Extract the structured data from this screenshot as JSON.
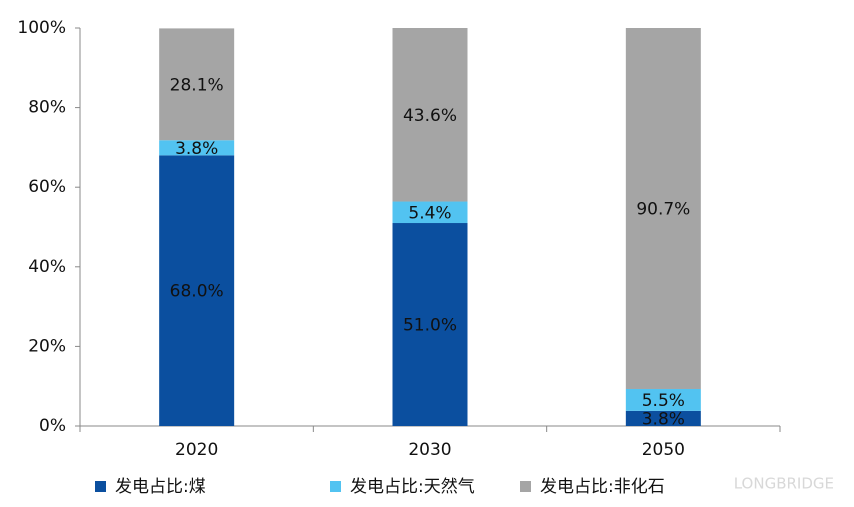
{
  "chart_data": {
    "type": "stacked_bar",
    "categories": [
      "2020",
      "2030",
      "2050"
    ],
    "series": [
      {
        "name": "发电占比:煤",
        "color": "#0b4f9f",
        "values": [
          68.0,
          51.0,
          3.8
        ],
        "value_labels": [
          "68.0%",
          "51.0%",
          "3.8%"
        ],
        "label_color": "#ffffff"
      },
      {
        "name": "发电占比:天然气",
        "color": "#52c3f1",
        "values": [
          3.8,
          5.4,
          5.5
        ],
        "value_labels": [
          "3.8%",
          "5.4%",
          "5.5%"
        ],
        "label_color": "#111111"
      },
      {
        "name": "发电占比:非化石",
        "color": "#a5a5a5",
        "values": [
          28.1,
          43.6,
          90.7
        ],
        "value_labels": [
          "28.1%",
          "43.6%",
          "90.7%"
        ],
        "label_color": "#111111"
      }
    ],
    "ylim": [
      0,
      100
    ],
    "yticks": [
      {
        "value": 0,
        "label": "0%"
      },
      {
        "value": 20,
        "label": "20%"
      },
      {
        "value": 40,
        "label": "40%"
      },
      {
        "value": 60,
        "label": "60%"
      },
      {
        "value": 80,
        "label": "80%"
      },
      {
        "value": 100,
        "label": "100%"
      }
    ],
    "legend": "bottom",
    "watermark": "LONGBRIDGE"
  }
}
